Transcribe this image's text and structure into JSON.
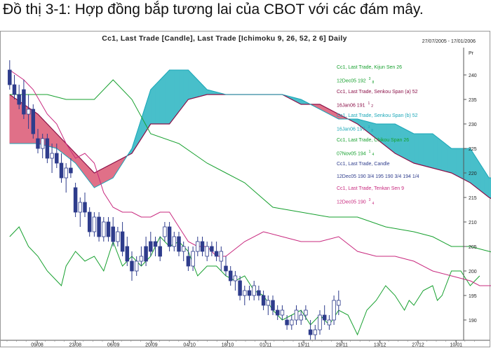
{
  "heading": "Đồ thị 3-1: Hợp đồng bắp tương lai của CBOT với các đám mây.",
  "chart_data": {
    "type": "candlestick",
    "title": "Cc1, Last Trade [Candle], Last Trade [Ichimoku 9, 26, 52, 2 6] Daily",
    "date_range": "27/07/2005 - 17/01/2006",
    "y_axis_label": "Pr",
    "ylim": [
      186,
      245
    ],
    "yticks": [
      190,
      195,
      200,
      205,
      210,
      215,
      220,
      225,
      230,
      235,
      240
    ],
    "x_ticks": [
      "09/08",
      "23/08",
      "06/09",
      "20/09",
      "04/10",
      "18/10",
      "01/11",
      "15/11",
      "29/11",
      "13/12",
      "27/12",
      "10/01"
    ],
    "legend": [
      {
        "text": "Cc1, Last Trade, Kijun Sen 26",
        "color": "#16a02e"
      },
      {
        "text": "12Dec05 192",
        "frac": "3",
        "fraclabel": "8",
        "color": "#16a02e"
      },
      {
        "text": "Cc1, Last Trade, Senkou Span (a) 52",
        "color": "#8b1048"
      },
      {
        "text": "16Jan06 191",
        "frac": "1",
        "fraclabel": "2",
        "color": "#8b1048"
      },
      {
        "text": "Cc1, Last Trade, Senkou Span (b) 52",
        "color": "#1aa7b8"
      },
      {
        "text": "16Jan06 197",
        "frac": "3",
        "fraclabel": "8",
        "color": "#1aa7b8"
      },
      {
        "text": "Cc1, Last Trade, Chikou Span 26",
        "color": "#16a02e"
      },
      {
        "text": "07Nov05 194",
        "frac": "1",
        "fraclabel": "4",
        "color": "#16a02e"
      },
      {
        "text": "Cc1, Last Trade, Candle",
        "color": "#2e3c8c"
      },
      {
        "text": "12Dec05 190   3/4   195 190   3/4   194   1/4",
        "color": "#2e3c8c"
      },
      {
        "text": "Cc1, Last Trade, Tenkan Sen 9",
        "color": "#c8287e"
      },
      {
        "text": "12Dec05 190",
        "frac": "3",
        "fraclabel": "4",
        "color": "#c8287e"
      }
    ],
    "colors": {
      "candle": "#2e3c8c",
      "kijun": "#16a02e",
      "chikou": "#16a02e",
      "tenkan": "#c8287e",
      "cloud_bullish": "#e07088",
      "cloud_bearish": "#48bfca",
      "span_a": "#8b1048",
      "span_b": "#1aa7b8"
    },
    "senkou_a": [
      [
        0,
        236
      ],
      [
        6,
        232
      ],
      [
        10,
        228
      ],
      [
        14,
        224
      ],
      [
        18,
        220
      ],
      [
        22,
        222
      ],
      [
        26,
        224
      ],
      [
        30,
        230
      ],
      [
        34,
        230
      ],
      [
        38,
        235
      ],
      [
        42,
        236
      ],
      [
        46,
        236
      ],
      [
        50,
        236
      ],
      [
        54,
        236
      ],
      [
        58,
        236
      ],
      [
        62,
        234
      ],
      [
        66,
        234
      ],
      [
        70,
        232
      ],
      [
        74,
        230
      ],
      [
        78,
        227
      ],
      [
        82,
        224
      ],
      [
        86,
        222
      ],
      [
        90,
        221
      ],
      [
        94,
        220
      ],
      [
        98,
        218
      ],
      [
        102,
        215
      ],
      [
        106,
        213
      ],
      [
        110,
        211
      ],
      [
        114,
        209
      ],
      [
        118,
        206
      ],
      [
        122,
        205
      ],
      [
        126,
        204
      ],
      [
        130,
        203
      ],
      [
        134,
        203
      ],
      [
        138,
        202
      ],
      [
        142,
        201
      ],
      [
        146,
        200
      ],
      [
        150,
        199
      ],
      [
        154,
        198
      ],
      [
        158,
        197
      ],
      [
        162,
        196
      ],
      [
        166,
        194
      ],
      [
        170,
        193
      ],
      [
        174,
        192
      ],
      [
        178,
        192
      ],
      [
        180,
        192
      ]
    ],
    "senkou_b": [
      [
        0,
        226
      ],
      [
        6,
        226
      ],
      [
        10,
        225
      ],
      [
        14,
        222
      ],
      [
        18,
        217
      ],
      [
        22,
        219
      ],
      [
        26,
        225
      ],
      [
        30,
        237
      ],
      [
        34,
        241
      ],
      [
        38,
        241
      ],
      [
        42,
        237
      ],
      [
        46,
        236
      ],
      [
        50,
        236
      ],
      [
        54,
        236
      ],
      [
        58,
        236
      ],
      [
        62,
        235
      ],
      [
        66,
        233
      ],
      [
        70,
        231
      ],
      [
        74,
        231
      ],
      [
        78,
        230
      ],
      [
        82,
        230
      ],
      [
        86,
        228
      ],
      [
        90,
        228
      ],
      [
        94,
        225
      ],
      [
        98,
        225
      ],
      [
        102,
        219
      ],
      [
        106,
        219
      ],
      [
        110,
        214
      ],
      [
        114,
        214
      ],
      [
        118,
        211
      ],
      [
        122,
        208
      ],
      [
        126,
        206
      ],
      [
        130,
        205
      ],
      [
        134,
        205
      ],
      [
        138,
        204
      ],
      [
        142,
        203
      ],
      [
        146,
        202
      ],
      [
        150,
        201
      ],
      [
        154,
        200
      ],
      [
        158,
        200
      ],
      [
        162,
        199
      ],
      [
        166,
        198
      ],
      [
        170,
        198
      ],
      [
        174,
        198
      ],
      [
        178,
        198
      ],
      [
        180,
        198
      ]
    ],
    "kijun": [
      [
        0,
        236
      ],
      [
        8,
        236
      ],
      [
        12,
        235
      ],
      [
        18,
        235
      ],
      [
        22,
        239
      ],
      [
        26,
        235
      ],
      [
        30,
        228
      ],
      [
        36,
        226
      ],
      [
        42,
        222
      ],
      [
        46,
        220
      ],
      [
        50,
        218
      ],
      [
        56,
        213
      ],
      [
        62,
        212
      ],
      [
        68,
        211
      ],
      [
        74,
        211
      ],
      [
        80,
        209
      ],
      [
        86,
        208
      ],
      [
        90,
        207
      ],
      [
        94,
        205
      ],
      [
        98,
        205
      ],
      [
        102,
        204
      ],
      [
        106,
        203
      ],
      [
        110,
        202
      ],
      [
        114,
        201
      ],
      [
        118,
        200
      ],
      [
        122,
        198
      ],
      [
        126,
        197
      ],
      [
        130,
        195
      ],
      [
        134,
        193
      ],
      [
        138,
        192
      ],
      [
        141,
        192
      ]
    ],
    "tenkan": [
      [
        0,
        241
      ],
      [
        3,
        239
      ],
      [
        5,
        237
      ],
      [
        8,
        232
      ],
      [
        10,
        230
      ],
      [
        12,
        226
      ],
      [
        14,
        223
      ],
      [
        16,
        224
      ],
      [
        18,
        222
      ],
      [
        20,
        216
      ],
      [
        22,
        213
      ],
      [
        24,
        212
      ],
      [
        26,
        212
      ],
      [
        28,
        211
      ],
      [
        30,
        211
      ],
      [
        32,
        212
      ],
      [
        34,
        212
      ],
      [
        36,
        209
      ],
      [
        38,
        206
      ],
      [
        40,
        205
      ],
      [
        42,
        205
      ],
      [
        44,
        203
      ],
      [
        46,
        203
      ],
      [
        50,
        206
      ],
      [
        54,
        208
      ],
      [
        58,
        207
      ],
      [
        62,
        206
      ],
      [
        66,
        206
      ],
      [
        70,
        207
      ],
      [
        74,
        204
      ],
      [
        78,
        203
      ],
      [
        82,
        203
      ],
      [
        86,
        202
      ],
      [
        90,
        200
      ],
      [
        94,
        199
      ],
      [
        98,
        198
      ],
      [
        100,
        197
      ],
      [
        104,
        197
      ],
      [
        108,
        196
      ],
      [
        112,
        195
      ],
      [
        116,
        193
      ],
      [
        120,
        192
      ],
      [
        124,
        191
      ],
      [
        126,
        191
      ],
      [
        128,
        192
      ],
      [
        130,
        194
      ],
      [
        133,
        195
      ],
      [
        136,
        194
      ],
      [
        138,
        193
      ],
      [
        141,
        191
      ]
    ],
    "chikou": [
      [
        0,
        207
      ],
      [
        2,
        209
      ],
      [
        4,
        205
      ],
      [
        6,
        203
      ],
      [
        8,
        200
      ],
      [
        10,
        198
      ],
      [
        11,
        197
      ],
      [
        12,
        201
      ],
      [
        14,
        204
      ],
      [
        16,
        202
      ],
      [
        18,
        203
      ],
      [
        20,
        200
      ],
      [
        22,
        206
      ],
      [
        24,
        201
      ],
      [
        26,
        203
      ],
      [
        28,
        201
      ],
      [
        30,
        203
      ],
      [
        32,
        207
      ],
      [
        34,
        205
      ],
      [
        36,
        206
      ],
      [
        38,
        204
      ],
      [
        40,
        199
      ],
      [
        42,
        201
      ],
      [
        44,
        201
      ],
      [
        46,
        199
      ],
      [
        48,
        198
      ],
      [
        50,
        199
      ],
      [
        52,
        196
      ],
      [
        54,
        195
      ],
      [
        56,
        192
      ],
      [
        58,
        190
      ],
      [
        60,
        191
      ],
      [
        62,
        192
      ],
      [
        64,
        189
      ],
      [
        66,
        191
      ],
      [
        68,
        189
      ],
      [
        70,
        192
      ],
      [
        72,
        191
      ],
      [
        74,
        187
      ],
      [
        76,
        192
      ],
      [
        78,
        194
      ],
      [
        80,
        197
      ],
      [
        82,
        195
      ],
      [
        84,
        192
      ],
      [
        85,
        194
      ],
      [
        86,
        193
      ],
      [
        88,
        196
      ],
      [
        90,
        197
      ],
      [
        91,
        194
      ],
      [
        92,
        195
      ],
      [
        94,
        200
      ],
      [
        96,
        200
      ],
      [
        98,
        197
      ],
      [
        100,
        199
      ]
    ],
    "candles_ohlc": [
      [
        241,
        243,
        237,
        238
      ],
      [
        238,
        240,
        235,
        236
      ],
      [
        236,
        238,
        233,
        234
      ],
      [
        237,
        239,
        231,
        232
      ],
      [
        232,
        236,
        229,
        233
      ],
      [
        233,
        234,
        227,
        228
      ],
      [
        227,
        229,
        224,
        225
      ],
      [
        225,
        228,
        223,
        227
      ],
      [
        227,
        228,
        222,
        223
      ],
      [
        223,
        226,
        220,
        224
      ],
      [
        224,
        226,
        221,
        222
      ],
      [
        222,
        224,
        218,
        219
      ],
      [
        219,
        222,
        216,
        221
      ],
      [
        221,
        223,
        219,
        220
      ],
      [
        217,
        218,
        211,
        212
      ],
      [
        212,
        215,
        209,
        214
      ],
      [
        214,
        216,
        211,
        212
      ],
      [
        212,
        213,
        207,
        208
      ],
      [
        208,
        212,
        207,
        211
      ],
      [
        211,
        212,
        206,
        207
      ],
      [
        207,
        211,
        206,
        210
      ],
      [
        210,
        211,
        206,
        207
      ],
      [
        209,
        211,
        205,
        206
      ],
      [
        206,
        209,
        205,
        208
      ],
      [
        208,
        210,
        203,
        204
      ],
      [
        205,
        207,
        201,
        202
      ],
      [
        202,
        204,
        198,
        200
      ],
      [
        200,
        203,
        199,
        202
      ],
      [
        202,
        205,
        201,
        203
      ],
      [
        205,
        207,
        201,
        202
      ],
      [
        206,
        208,
        203,
        204
      ],
      [
        206,
        207,
        203,
        205
      ],
      [
        205,
        207,
        202,
        203
      ],
      [
        207,
        210,
        206,
        209
      ],
      [
        209,
        210,
        204,
        205
      ],
      [
        205,
        208,
        204,
        207
      ],
      [
        207,
        208,
        203,
        204
      ],
      [
        204,
        206,
        202,
        205
      ],
      [
        203,
        205,
        200,
        201
      ],
      [
        201,
        205,
        200,
        204
      ],
      [
        204,
        207,
        203,
        206
      ],
      [
        206,
        207,
        203,
        204
      ],
      [
        203,
        206,
        202,
        205
      ],
      [
        205,
        206,
        203,
        204
      ],
      [
        204,
        206,
        202,
        203
      ],
      [
        202,
        205,
        200,
        204
      ],
      [
        201,
        203,
        199,
        200
      ],
      [
        200,
        201,
        197,
        198
      ],
      [
        198,
        200,
        196,
        199
      ],
      [
        198,
        199,
        194,
        195
      ],
      [
        195,
        197,
        193,
        196
      ],
      [
        196,
        197,
        194,
        195
      ],
      [
        195,
        198,
        194,
        197
      ],
      [
        196,
        197,
        194,
        195
      ],
      [
        195,
        196,
        192,
        193
      ],
      [
        193,
        195,
        191,
        194
      ],
      [
        194,
        195,
        191,
        192
      ],
      [
        192,
        193,
        190,
        191
      ],
      [
        191,
        193,
        190,
        192
      ],
      [
        190,
        191,
        188,
        189
      ],
      [
        189,
        191,
        188,
        190
      ],
      [
        190,
        193,
        189,
        192
      ],
      [
        190,
        192,
        189,
        191
      ],
      [
        191,
        193,
        190,
        192
      ],
      [
        188,
        190,
        186,
        187
      ],
      [
        187,
        189,
        186,
        188
      ],
      [
        188,
        192,
        187,
        191
      ],
      [
        191,
        193,
        189,
        190
      ],
      [
        189,
        191,
        188,
        190
      ],
      [
        190,
        195,
        189,
        194
      ],
      [
        193,
        196,
        191,
        194
      ]
    ]
  }
}
